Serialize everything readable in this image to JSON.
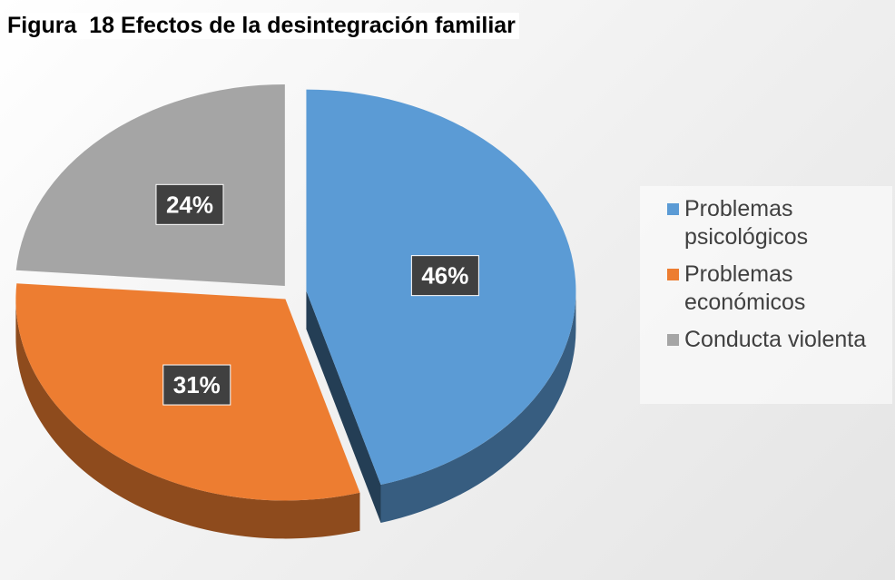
{
  "chart_data": {
    "type": "pie",
    "title": "Figura  18 Efectos de la desintegración familiar",
    "categories": [
      "Problemas psicológicos",
      "Problemas económicos",
      "Conducta violenta"
    ],
    "values": [
      46,
      31,
      24
    ],
    "value_labels": [
      "46%",
      "31%",
      "24%"
    ],
    "colors": [
      "#5b9bd5",
      "#ed7d31",
      "#a5a5a5"
    ],
    "legend": "right"
  }
}
